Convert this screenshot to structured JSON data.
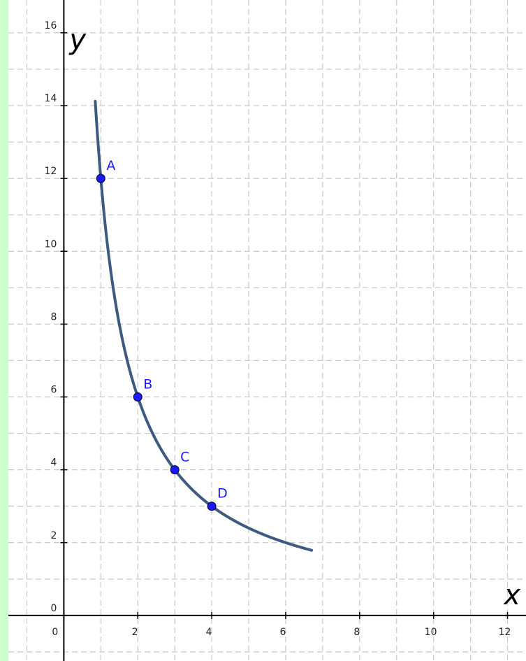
{
  "chart_data": {
    "type": "scatter",
    "xlabel": "x",
    "ylabel": "y",
    "xlim": [
      -1.5,
      12.5
    ],
    "ylim": [
      -1.25,
      16.9
    ],
    "x_ticks": [
      0,
      2,
      4,
      6,
      8,
      10,
      12
    ],
    "y_ticks": [
      0,
      2,
      4,
      6,
      8,
      10,
      12,
      14,
      16
    ],
    "grid": true,
    "points": [
      {
        "label": "A",
        "x": 1,
        "y": 12
      },
      {
        "label": "B",
        "x": 2,
        "y": 6
      },
      {
        "label": "C",
        "x": 3,
        "y": 4
      },
      {
        "label": "D",
        "x": 4,
        "y": 3
      }
    ],
    "curve": {
      "function": "y = 12/x",
      "x_range": [
        0.85,
        6.7
      ]
    },
    "colors": {
      "curve": "#3d5a80",
      "points": "#1a1aff",
      "labels": "#1a1aff",
      "background": "#ccffcc"
    }
  }
}
